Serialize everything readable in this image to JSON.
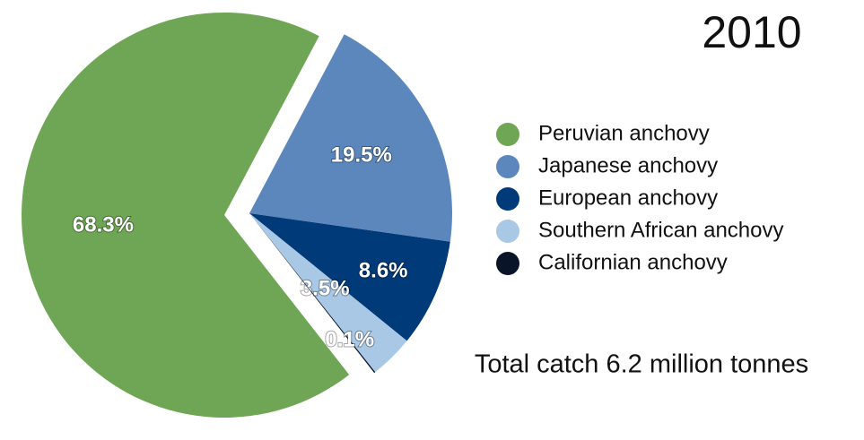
{
  "chart_data": {
    "type": "pie",
    "title": "2010",
    "annotation": "Total catch 6.2 million tonnes",
    "categories": [
      "Peruvian anchovy",
      "Japanese anchovy",
      "European anchovy",
      "Southern African anchovy",
      "Californian anchovy"
    ],
    "values": [
      68.3,
      19.5,
      8.6,
      3.5,
      0.1
    ],
    "value_labels": [
      "68.3%",
      "19.5%",
      "8.6%",
      "3.5%",
      "0.1%"
    ],
    "colors": [
      "#6fa655",
      "#5b87bd",
      "#003a78",
      "#a8c8e6",
      "#0a1428"
    ]
  }
}
